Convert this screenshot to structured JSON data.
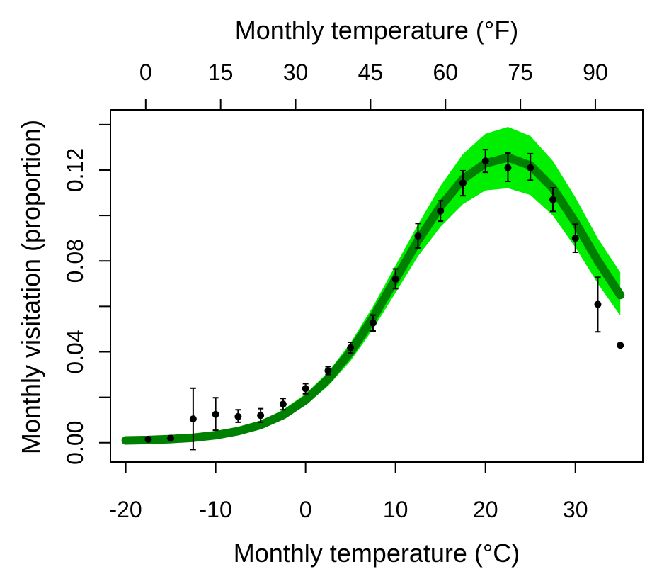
{
  "chart_data": {
    "type": "scatter",
    "xlabel_bottom": "Monthly temperature (°C)",
    "xlabel_top": "Monthly temperature (°F)",
    "ylabel": "Monthly visitation (proportion)",
    "xlim": [
      -21.7,
      37.5
    ],
    "ylim": [
      -0.0085,
      0.1465
    ],
    "x_ticks": [
      -20,
      -10,
      0,
      10,
      20,
      30
    ],
    "x_tick_labels": [
      "-20",
      "-10",
      "0",
      "10",
      "20",
      "30"
    ],
    "top_ticks_f": [
      0,
      15,
      30,
      45,
      60,
      75,
      90
    ],
    "top_tick_labels": [
      "0",
      "15",
      "30",
      "45",
      "60",
      "75",
      "90"
    ],
    "y_ticks": [
      0.0,
      0.02,
      0.04,
      0.06,
      0.08,
      0.1,
      0.12,
      0.14
    ],
    "y_tick_labels": [
      "0.00",
      "",
      "0.04",
      "",
      "0.08",
      "",
      "0.12",
      ""
    ],
    "grid": false,
    "series": [
      {
        "kind": "confidence_band",
        "color": "#00ee00",
        "x": [
          -20,
          -17.5,
          -15,
          -12.5,
          -10,
          -7.5,
          -5,
          -2.5,
          0,
          2.5,
          5,
          7.5,
          10,
          12.5,
          15,
          17.5,
          20,
          22.5,
          25,
          27.5,
          30,
          32.5,
          35
        ],
        "lower": [
          0.0005,
          0.0007,
          0.001,
          0.0015,
          0.0025,
          0.004,
          0.0065,
          0.0105,
          0.0165,
          0.025,
          0.036,
          0.05,
          0.066,
          0.082,
          0.095,
          0.105,
          0.111,
          0.112,
          0.109,
          0.1,
          0.086,
          0.07,
          0.056
        ],
        "upper": [
          0.0016,
          0.0018,
          0.0022,
          0.003,
          0.0045,
          0.0065,
          0.0095,
          0.0145,
          0.0215,
          0.031,
          0.044,
          0.06,
          0.078,
          0.096,
          0.113,
          0.127,
          0.136,
          0.139,
          0.135,
          0.124,
          0.108,
          0.09,
          0.075
        ]
      },
      {
        "kind": "fit_line",
        "color": "#008000",
        "x": [
          -20,
          -17.5,
          -15,
          -12.5,
          -10,
          -7.5,
          -5,
          -2.5,
          0,
          2.5,
          5,
          7.5,
          10,
          12.5,
          15,
          17.5,
          20,
          22.5,
          25,
          27.5,
          30,
          32.5,
          35
        ],
        "y": [
          0.001,
          0.0012,
          0.0016,
          0.0022,
          0.0033,
          0.0051,
          0.0078,
          0.0122,
          0.0188,
          0.028,
          0.04,
          0.055,
          0.072,
          0.089,
          0.104,
          0.116,
          0.123,
          0.1255,
          0.122,
          0.112,
          0.097,
          0.08,
          0.065
        ]
      },
      {
        "kind": "observed_points",
        "color": "#000000",
        "x": [
          -17.5,
          -15,
          -12.5,
          -10,
          -7.5,
          -5,
          -2.5,
          0,
          2.5,
          5,
          7.5,
          10,
          12.5,
          15,
          17.5,
          20,
          22.5,
          25,
          27.5,
          30,
          32.5,
          35
        ],
        "y": [
          0.0015,
          0.002,
          0.0105,
          0.0125,
          0.0115,
          0.012,
          0.017,
          0.0238,
          0.0317,
          0.0418,
          0.0527,
          0.072,
          0.091,
          0.102,
          0.1143,
          0.124,
          0.121,
          0.121,
          0.107,
          0.09,
          0.0609,
          0.0429
        ],
        "lower": [
          0.001,
          0.0015,
          -0.003,
          0.0055,
          0.009,
          0.009,
          0.0145,
          0.0215,
          0.03,
          0.0395,
          0.0492,
          0.0678,
          0.0857,
          0.0975,
          0.1087,
          0.119,
          0.115,
          0.1155,
          0.1018,
          0.0838,
          0.0488,
          0.0425
        ],
        "upper": [
          0.002,
          0.0025,
          0.024,
          0.0198,
          0.0145,
          0.015,
          0.0195,
          0.026,
          0.0335,
          0.0442,
          0.0562,
          0.0765,
          0.0965,
          0.1065,
          0.1197,
          0.129,
          0.1275,
          0.1272,
          0.1122,
          0.0962,
          0.0728,
          0.0433
        ]
      }
    ]
  }
}
